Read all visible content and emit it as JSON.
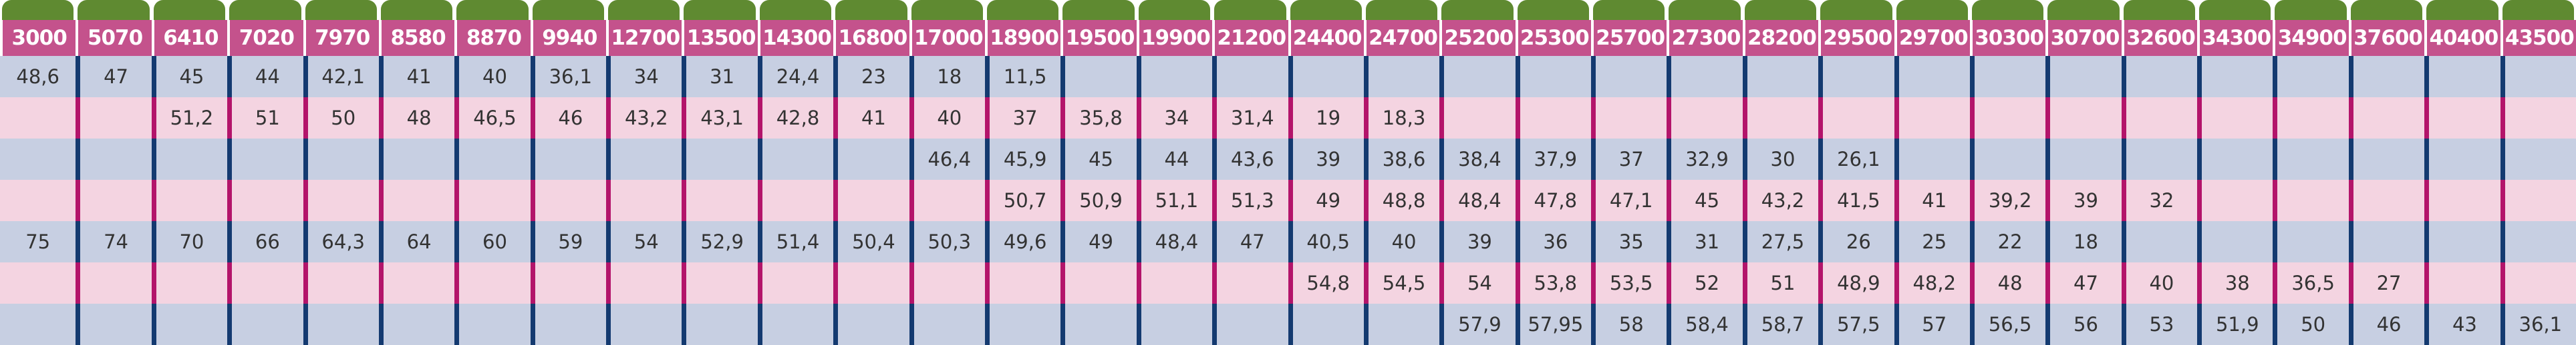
{
  "table": {
    "columns": [
      "3000",
      "5070",
      "6410",
      "7020",
      "7970",
      "8580",
      "8870",
      "9940",
      "12700",
      "13500",
      "14300",
      "16800",
      "17000",
      "18900",
      "19500",
      "19900",
      "21200",
      "24400",
      "24700",
      "25200",
      "25300",
      "25700",
      "27300",
      "28200",
      "29500",
      "29700",
      "30300",
      "30700",
      "32600",
      "34300",
      "34900",
      "37600",
      "40400",
      "43500"
    ],
    "rows": [
      [
        "48,6",
        "47",
        "45",
        "44",
        "42,1",
        "41",
        "40",
        "36,1",
        "34",
        "31",
        "24,4",
        "23",
        "18",
        "11,5"
      ],
      [
        null,
        null,
        "51,2",
        "51",
        "50",
        "48",
        "46,5",
        "46",
        "43,2",
        "43,1",
        "42,8",
        "41",
        "40",
        "37",
        "35,8",
        "34",
        "31,4",
        "19",
        "18,3"
      ],
      [
        null,
        null,
        null,
        null,
        null,
        null,
        null,
        null,
        null,
        null,
        null,
        null,
        "46,4",
        "45,9",
        "45",
        "44",
        "43,6",
        "39",
        "38,6",
        "38,4",
        "37,9",
        "37",
        "32,9",
        "30",
        "26,1"
      ],
      [
        null,
        null,
        null,
        null,
        null,
        null,
        null,
        null,
        null,
        null,
        null,
        null,
        null,
        "50,7",
        "50,9",
        "51,1",
        "51,3",
        "49",
        "48,8",
        "48,4",
        "47,8",
        "47,1",
        "45",
        "43,2",
        "41,5",
        "41",
        "39,2",
        "39",
        "32"
      ],
      [
        "75",
        "74",
        "70",
        "66",
        "64,3",
        "64",
        "60",
        "59",
        "54",
        "52,9",
        "51,4",
        "50,4",
        "50,3",
        "49,6",
        "49",
        "48,4",
        "47",
        "40,5",
        "40",
        "39",
        "36",
        "35",
        "31",
        "27,5",
        "26",
        "25",
        "22",
        "18"
      ],
      [
        null,
        null,
        null,
        null,
        null,
        null,
        null,
        null,
        null,
        null,
        null,
        null,
        null,
        null,
        null,
        null,
        null,
        "54,8",
        "54,5",
        "54",
        "53,8",
        "53,5",
        "52",
        "51",
        "48,9",
        "48,2",
        "48",
        "47",
        "40",
        "38",
        "36,5",
        "27"
      ],
      [
        null,
        null,
        null,
        null,
        null,
        null,
        null,
        null,
        null,
        null,
        null,
        null,
        null,
        null,
        null,
        null,
        null,
        null,
        null,
        "57,9",
        "57,95",
        "58",
        "58,4",
        "58,7",
        "57,5",
        "57",
        "56,5",
        "56",
        "53",
        "51,9",
        "50",
        "46",
        "43",
        "36,1"
      ]
    ]
  }
}
